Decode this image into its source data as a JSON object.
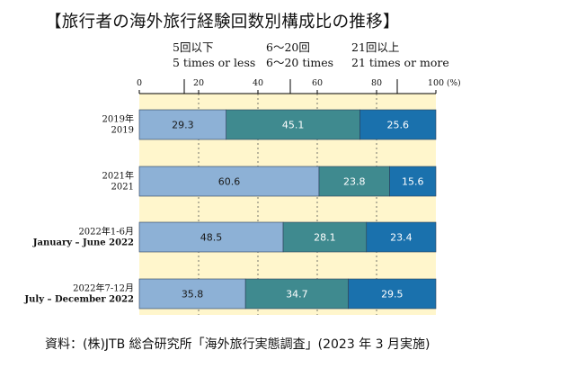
{
  "title": "【旅行者の海外旅行経験回数別構成比の推移】",
  "legend": [
    {
      "ja": "5回以下",
      "en": "5 times or less",
      "color": "#8db1d6"
    },
    {
      "ja": "6～20回",
      "en": "6～20 times",
      "color": "#3f8a8f"
    },
    {
      "ja": "21回以上",
      "en": "21 times or more",
      "color": "#1a71ad"
    }
  ],
  "source": "資料：(株)JTB 総合研究所「海外旅行実態調査」(2023 年 3 月実施)",
  "chart_data": {
    "type": "bar",
    "orientation": "horizontal",
    "stacked": true,
    "x_ticks": [
      "0",
      "20",
      "40",
      "60",
      "80",
      "100"
    ],
    "x_unit": "(%)",
    "xlim": [
      0,
      100
    ],
    "categories": [
      {
        "ja": "2019年",
        "en": "2019"
      },
      {
        "ja": "2021年",
        "en": "2021"
      },
      {
        "ja": "2022年1-6月",
        "en": "January – June 2022"
      },
      {
        "ja": "2022年7-12月",
        "en": "July – December 2022"
      }
    ],
    "series": [
      {
        "name": "5回以下",
        "values": [
          29.3,
          60.6,
          48.5,
          35.8
        ]
      },
      {
        "name": "6～20回",
        "values": [
          45.1,
          23.8,
          28.1,
          34.7
        ]
      },
      {
        "name": "21回以上",
        "values": [
          25.6,
          15.6,
          23.4,
          29.5
        ]
      }
    ],
    "background_color": "#fff6cc",
    "gridlines": true
  }
}
